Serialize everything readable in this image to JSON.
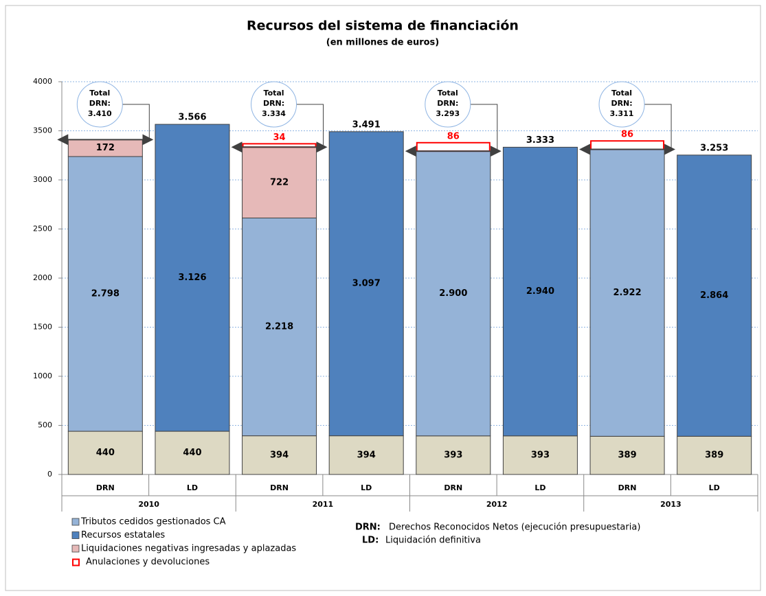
{
  "chart_data": {
    "type": "stacked_bar",
    "title": "Recursos del sistema de financiación",
    "subtitle": "(en millones de euros)",
    "categories": [
      "DRN",
      "LD",
      "DRN",
      "LD",
      "DRN",
      "LD",
      "DRN",
      "LD"
    ],
    "groups": [
      "2010",
      "2011",
      "2012",
      "2013"
    ],
    "ylim": [
      0,
      4000
    ],
    "yticks": [
      0,
      500,
      1000,
      1500,
      2000,
      2500,
      3000,
      3500,
      4000
    ],
    "grid": true,
    "series": [
      {
        "color": "#ddd9c3",
        "values": [
          440,
          440,
          394,
          394,
          393,
          393,
          389,
          389
        ]
      },
      {
        "name": "Tributos cedidos gestionados CA",
        "color": "#95b3d7",
        "values": [
          2798,
          null,
          2218,
          null,
          2900,
          null,
          2922,
          null
        ],
        "value_labels": [
          "2.798",
          null,
          "2.218",
          null,
          "2.900",
          null,
          "2.922",
          null
        ]
      },
      {
        "name": "Recursos estatales",
        "color": "#4f81bd",
        "values": [
          null,
          3126,
          null,
          3097,
          null,
          2940,
          null,
          2864
        ],
        "value_labels": [
          null,
          "3.126",
          null,
          "3.097",
          null,
          "2.940",
          null,
          "2.864"
        ]
      },
      {
        "name": "Liquidaciones negativas ingresadas y aplazadas",
        "color": "#e6b9b8",
        "values": [
          172,
          null,
          722,
          null,
          null,
          null,
          null,
          null
        ]
      },
      {
        "name": "Anulaciones y devoluciones",
        "color": "#ff0000",
        "outline": true,
        "label_position": "above",
        "values": [
          null,
          null,
          34,
          null,
          86,
          null,
          86,
          null
        ]
      }
    ],
    "ld_totals": {
      "values": [
        3566,
        3491,
        3333,
        3253
      ],
      "value_labels": [
        "3.566",
        "3.491",
        "3.333",
        "3.253"
      ]
    },
    "drn_totals": {
      "label_lines": [
        "Total",
        "DRN:"
      ],
      "values": [
        3410,
        3334,
        3293,
        3311
      ],
      "value_labels": [
        "3.410",
        "3.334",
        "3.293",
        "3.311"
      ]
    },
    "notes": [
      {
        "key": "DRN:",
        "text": "Derechos Reconocidos Netos (ejecución presupuestaria)"
      },
      {
        "key": "LD:",
        "text": "Liquidación definitiva"
      }
    ]
  }
}
